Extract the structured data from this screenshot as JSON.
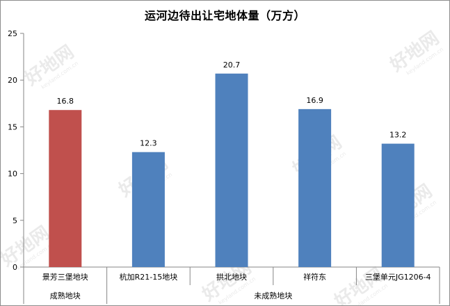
{
  "chart_data": {
    "type": "bar",
    "title": "运河边待出让宅地体量（万方）",
    "xlabel": "",
    "ylabel": "",
    "ylim": [
      0,
      25
    ],
    "yticks": [
      0,
      5,
      10,
      15,
      20,
      25
    ],
    "grid": false,
    "legend": "none",
    "categories": [
      "景芳三堡地块",
      "杭加R21-15地块",
      "拱北地块",
      "祥符东",
      "三堡单元JG1206-4"
    ],
    "values": [
      16.8,
      12.3,
      20.7,
      16.9,
      13.2
    ],
    "bar_colors": [
      "#c0504d",
      "#4f81bd",
      "#4f81bd",
      "#4f81bd",
      "#4f81bd"
    ],
    "groups": [
      {
        "label": "成熟地块",
        "count": 1
      },
      {
        "label": "未成熟地块",
        "count": 4
      }
    ]
  },
  "watermark": {
    "text": "好地网",
    "subtext": "keyland.com.cn",
    "color": "#d9d9d9"
  }
}
